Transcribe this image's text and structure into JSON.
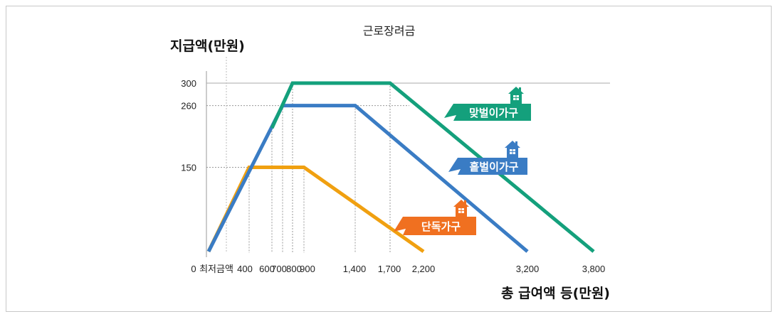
{
  "chart_data": {
    "type": "line",
    "title": "근로장려금",
    "ylabel": "지급액(만원)",
    "xlabel": "총 급여액 등(만원)",
    "x_tick_labels": [
      "0",
      "최저금액",
      "400",
      "600",
      "700",
      "800",
      "900",
      "1,400",
      "1,700",
      "2,200",
      "3,200",
      "3,800"
    ],
    "y_tick_labels": [
      "150",
      "260",
      "300"
    ],
    "series": [
      {
        "name": "단독가구",
        "color": "#f0a010",
        "points": [
          [
            0,
            0
          ],
          [
            400,
            150
          ],
          [
            900,
            150
          ],
          [
            2200,
            0
          ]
        ]
      },
      {
        "name": "홑벌이가구",
        "color": "#3a7cc4",
        "points": [
          [
            0,
            0
          ],
          [
            700,
            260
          ],
          [
            1400,
            260
          ],
          [
            3200,
            0
          ]
        ]
      },
      {
        "name": "맞벌이가구",
        "color": "#14a07c",
        "points": [
          [
            600,
            220
          ],
          [
            800,
            300
          ],
          [
            1700,
            300
          ],
          [
            3800,
            0
          ]
        ]
      }
    ],
    "badges": [
      {
        "label": "맞벌이가구",
        "color": "#14a07c"
      },
      {
        "label": "홑벌이가구",
        "color": "#3a7cc4"
      },
      {
        "label": "단독가구",
        "color": "#f07020"
      }
    ]
  }
}
